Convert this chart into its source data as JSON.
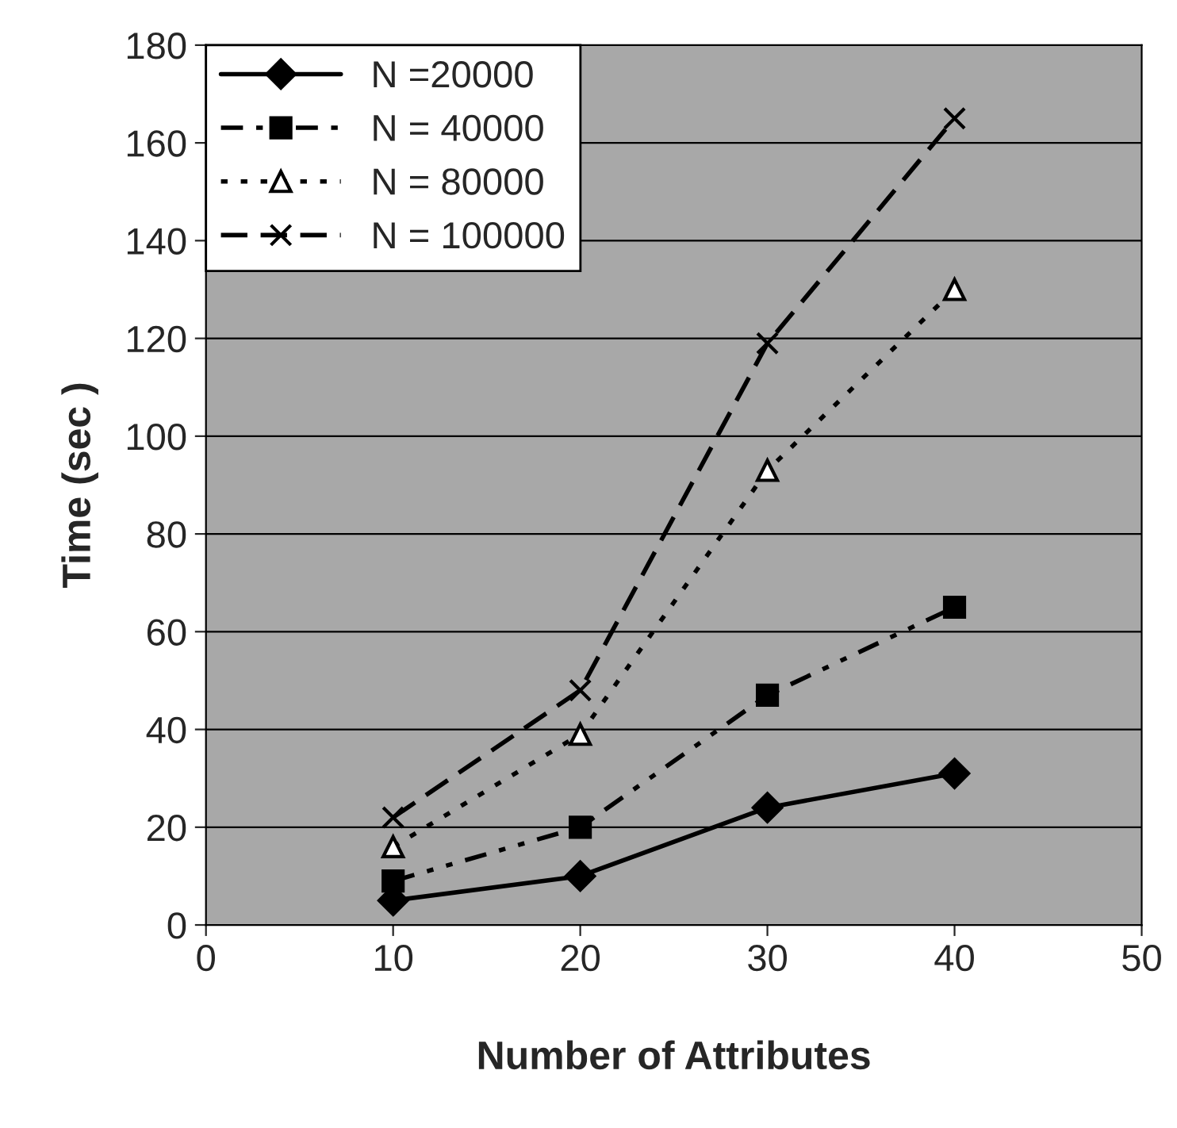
{
  "chart_data": {
    "type": "line",
    "xlabel": "Number of Attributes",
    "ylabel": "Time (sec )",
    "x": [
      10,
      20,
      30,
      40
    ],
    "series": [
      {
        "name": "N =20000",
        "color": "#000000",
        "values": [
          5,
          10,
          24,
          31
        ],
        "marker": "diamond",
        "line_style": "solid"
      },
      {
        "name": "N = 40000",
        "color": "#000000",
        "values": [
          9,
          20,
          47,
          65
        ],
        "marker": "square",
        "line_style": "dashdot"
      },
      {
        "name": "N = 80000",
        "color": "#000000",
        "values": [
          16,
          39,
          93,
          130
        ],
        "marker": "triangle",
        "line_style": "dotted"
      },
      {
        "name": "N = 100000",
        "color": "#000000",
        "values": [
          22,
          48,
          119,
          165
        ],
        "marker": "cross",
        "line_style": "dashed"
      }
    ],
    "xlim": [
      0,
      50
    ],
    "xticks": [
      0,
      10,
      20,
      30,
      40,
      50
    ],
    "ylim": [
      0,
      180
    ],
    "yticks": [
      0,
      20,
      40,
      60,
      80,
      100,
      120,
      140,
      160,
      180
    ],
    "grid": "y",
    "legend": "top left"
  }
}
